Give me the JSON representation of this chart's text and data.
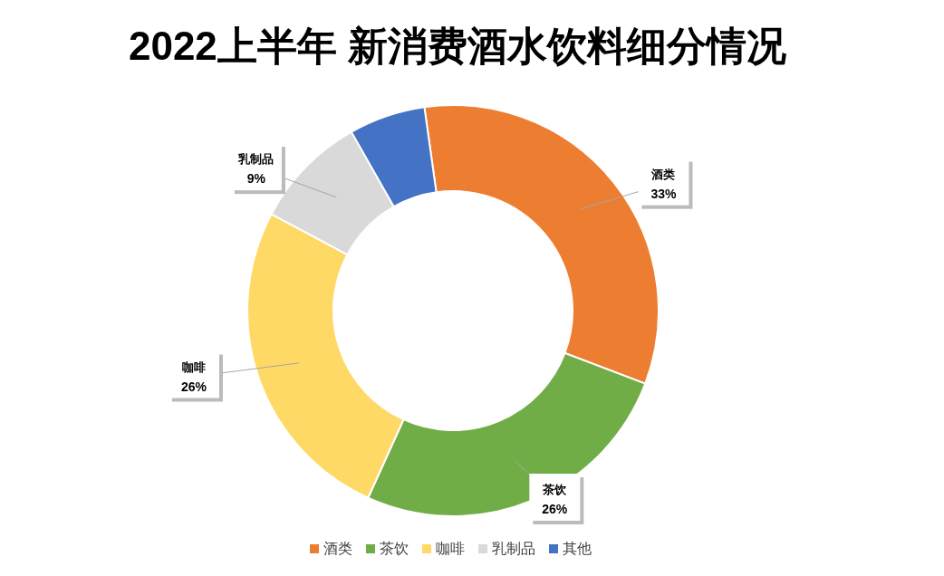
{
  "chart_data": {
    "type": "donut",
    "title": "2022上半年 新消费酒水饮料细分情况",
    "categories": [
      "酒类",
      "茶饮",
      "咖啡",
      "乳制品",
      "其他"
    ],
    "values": [
      33,
      26,
      26,
      9,
      6
    ],
    "colors": [
      "#ed7d31",
      "#70ad47",
      "#ffd966",
      "#d9d9d9",
      "#4472c4"
    ],
    "value_labels": [
      "33%",
      "26%",
      "26%",
      "9%",
      null
    ],
    "legend": "bottom"
  }
}
